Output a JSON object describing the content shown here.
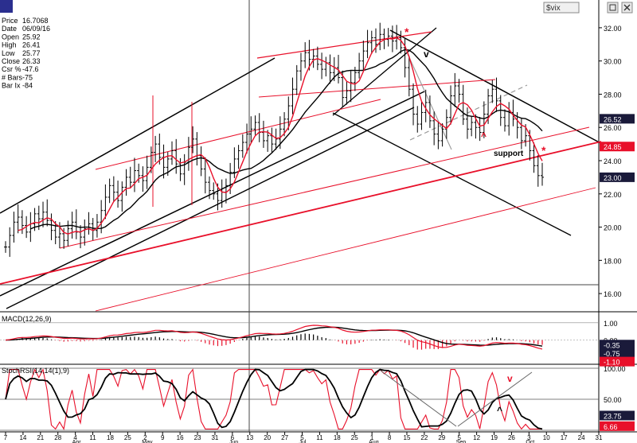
{
  "titlebar": {
    "symbol_field": "$vix",
    "restore_icon": "restore-icon",
    "close_icon": "close-icon"
  },
  "info": [
    {
      "label": "Price",
      "value": "16.7068"
    },
    {
      "label": "Date",
      "value": "06/09/16"
    },
    {
      "label": "Open",
      "value": "25.92"
    },
    {
      "label": "High",
      "value": "26.41"
    },
    {
      "label": "Low",
      "value": "25.77"
    },
    {
      "label": "Close",
      "value": "26.33"
    },
    {
      "label": "Csr %",
      "value": "-47.6"
    },
    {
      "label": "# Bars",
      "value": "-75"
    },
    {
      "label": "Bar Ix",
      "value": "-84"
    }
  ],
  "colors": {
    "price_bars": "#000000",
    "ma_fast": "#e8102a",
    "ma_slow": "#000000",
    "channel_red": "#e8102a",
    "trend_black": "#000000",
    "dashed_gray": "#999999",
    "tag_red_bg": "#e8102a",
    "tag_dark_bg": "#1a1a3a"
  },
  "annotations": {
    "support": "support",
    "star1": "*",
    "star2": "*",
    "v_mark1": "v",
    "caret_mark1": "^",
    "v_mark2": "v",
    "caret_mark2": "^"
  },
  "chart_data": [
    {
      "type": "ohlc",
      "panel": "price",
      "ylim": [
        15,
        33
      ],
      "y_ticks": [
        "32.00",
        "30.00",
        "28.00",
        "26.00",
        "24.00",
        "22.00",
        "20.00",
        "18.00",
        "16.00"
      ],
      "y_tick_values": [
        32,
        30,
        28,
        26,
        24,
        22,
        20,
        18,
        16
      ],
      "price_tags": [
        {
          "label": "26.52",
          "value": 26.52,
          "style": "dark"
        },
        {
          "label": "24.85",
          "value": 24.85,
          "style": "red"
        },
        {
          "label": "23.00",
          "value": 23.0,
          "style": "dark"
        }
      ],
      "x_ticks": [
        "7",
        "14",
        "21",
        "28",
        "4",
        "11",
        "18",
        "25",
        "2",
        "9",
        "16",
        "23",
        "31",
        "6",
        "13",
        "20",
        "27",
        "5",
        "11",
        "18",
        "25",
        "1",
        "8",
        "15",
        "22",
        "29",
        "5",
        "12",
        "19",
        "26",
        "3",
        "10",
        "17",
        "24",
        "31"
      ],
      "month_labels": [
        "Apr",
        "May",
        "Jun",
        "Jul",
        "Aug",
        "Sep",
        "Oct"
      ],
      "closes": [
        18.8,
        19.5,
        20.3,
        20.6,
        20.1,
        19.7,
        20.2,
        20.8,
        20.5,
        20.9,
        20.4,
        19.8,
        19.4,
        19.6,
        19.2,
        19.9,
        20.3,
        19.7,
        19.4,
        19.9,
        20.2,
        19.8,
        20.3,
        21.0,
        21.8,
        22.5,
        22.1,
        21.6,
        22.4,
        23.0,
        22.7,
        23.4,
        23.1,
        22.8,
        23.6,
        24.5,
        25.0,
        24.2,
        23.6,
        24.1,
        24.6,
        23.8,
        23.2,
        23.9,
        24.8,
        25.3,
        24.3,
        23.5,
        22.7,
        22.2,
        22.0,
        21.6,
        22.1,
        22.5,
        23.3,
        24.1,
        24.6,
        25.1,
        25.6,
        25.9,
        26.3,
        25.7,
        25.2,
        25.5,
        25.0,
        25.3,
        25.9,
        26.5,
        27.3,
        28.3,
        29.4,
        30.0,
        30.5,
        30.1,
        30.3,
        29.8,
        29.5,
        29.9,
        29.3,
        29.6,
        29.0,
        27.8,
        28.2,
        28.7,
        29.3,
        30.0,
        30.6,
        31.1,
        31.4,
        31.0,
        31.6,
        31.3,
        31.5,
        31.2,
        31.4,
        30.8,
        29.6,
        28.3,
        26.8,
        26.2,
        26.9,
        27.5,
        26.4,
        25.6,
        25.2,
        25.9,
        26.6,
        27.9,
        28.5,
        28.0,
        26.5,
        25.9,
        26.3,
        26.0,
        25.7,
        26.8,
        27.9,
        28.3,
        27.6,
        26.6,
        26.1,
        26.9,
        26.5,
        26.0,
        25.2,
        25.5,
        24.6,
        23.7,
        23.1,
        23.0
      ]
    },
    {
      "type": "macd",
      "panel": "macd",
      "title": "MACD(12,26,9)",
      "ylim": [
        -1.3,
        1.45
      ],
      "y_ticks": [
        "1.00",
        "0.00"
      ],
      "y_tick_values": [
        1.0,
        0.0
      ],
      "value_tags": [
        {
          "label": "-0.35",
          "value": -0.35,
          "style": "dark"
        },
        {
          "label": "-0.75",
          "value": -0.75,
          "style": "dark"
        },
        {
          "label": "-1.10",
          "value": -1.1,
          "style": "red"
        }
      ]
    },
    {
      "type": "stoch_rsi",
      "panel": "stoch",
      "title": "StochRSI(14,14(1),9)",
      "ylim": [
        0,
        100
      ],
      "y_ticks": [
        "100.00",
        "50.00"
      ],
      "y_tick_values": [
        100,
        50
      ],
      "value_tags": [
        {
          "label": "23.75",
          "value": 23.75,
          "style": "dark"
        },
        {
          "label": "6.66",
          "value": 6.66,
          "style": "red"
        }
      ]
    }
  ]
}
